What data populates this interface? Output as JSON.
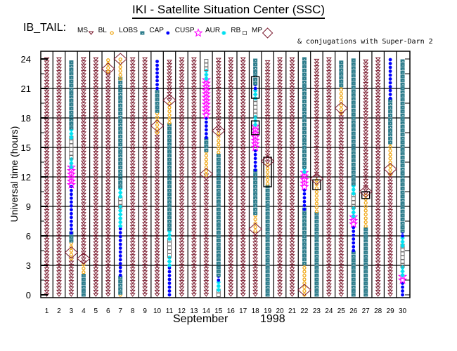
{
  "chart_data": {
    "type": "scatter",
    "title": "IKI - Satellite Situation Center (SSC)",
    "satellite_label": "IB_TAIL:",
    "note": "& conjugations with Super-Darn 2",
    "xlabel_month": "September",
    "xlabel_year": "1998",
    "ylabel": "Universal time (hours)",
    "ylim": [
      0,
      24
    ],
    "yticks": [
      0,
      3,
      6,
      9,
      12,
      15,
      18,
      21,
      24
    ],
    "xticks": [
      1,
      2,
      3,
      4,
      5,
      6,
      7,
      8,
      9,
      10,
      11,
      12,
      13,
      14,
      15,
      16,
      17,
      18,
      19,
      20,
      21,
      22,
      23,
      24,
      25,
      26,
      27,
      28,
      29,
      30
    ],
    "grid": true,
    "legend": [
      {
        "key": "MS",
        "label": "MS",
        "symbol": "triangle-down",
        "color": "#7a1a2e"
      },
      {
        "key": "BL",
        "label": "BL",
        "symbol": "sun",
        "color": "#f0a818"
      },
      {
        "key": "LOBS",
        "label": "LOBS",
        "symbol": "filled-square",
        "color": "#2e7d8c"
      },
      {
        "key": "CAP",
        "label": "CAP",
        "symbol": "filled-circle",
        "color": "#0000ff"
      },
      {
        "key": "CUSP",
        "label": "CUSP",
        "symbol": "star",
        "color": "#ff00ff"
      },
      {
        "key": "AUR",
        "label": "AUR",
        "symbol": "asterisk",
        "color": "#00e0f0"
      },
      {
        "key": "RB",
        "label": "RB",
        "symbol": "open-square",
        "color": "#707070"
      },
      {
        "key": "MP",
        "label": "MP",
        "symbol": "diamond",
        "color": "#7a1a2e"
      }
    ],
    "legend_position": "top",
    "days": [
      {
        "day": 1,
        "segments": [
          {
            "region": "MS",
            "from": 0,
            "to": 24
          }
        ]
      },
      {
        "day": 2,
        "segments": [
          {
            "region": "MS",
            "from": 0,
            "to": 24
          }
        ]
      },
      {
        "day": 3,
        "segments": [
          {
            "region": "MS",
            "from": 0,
            "to": 3.7
          },
          {
            "region": "BL",
            "from": 3.7,
            "to": 5.5
          },
          {
            "region": "LOBS",
            "from": 5.5,
            "to": 6.3
          },
          {
            "region": "CAP",
            "from": 6.3,
            "to": 11.2
          },
          {
            "region": "CUSP",
            "from": 11.2,
            "to": 13.0
          },
          {
            "region": "AUR",
            "from": 13.0,
            "to": 14.0
          },
          {
            "region": "RB",
            "from": 14.0,
            "to": 16.0
          },
          {
            "region": "AUR",
            "from": 16.0,
            "to": 17.0
          },
          {
            "region": "LOBS",
            "from": 17.0,
            "to": 24
          }
        ],
        "mp": [
          4.3
        ]
      },
      {
        "day": 4,
        "segments": [
          {
            "region": "LOBS",
            "from": 0,
            "to": 2.3
          },
          {
            "region": "BL",
            "from": 2.3,
            "to": 3.3
          },
          {
            "region": "MS",
            "from": 3.3,
            "to": 24
          }
        ],
        "mp": [
          3.7
        ]
      },
      {
        "day": 5,
        "segments": [
          {
            "region": "MS",
            "from": 0,
            "to": 24
          }
        ]
      },
      {
        "day": 6,
        "segments": [
          {
            "region": "MS",
            "from": 0,
            "to": 22.7
          },
          {
            "region": "BL",
            "from": 22.7,
            "to": 24
          }
        ],
        "mp": [
          23.0
        ]
      },
      {
        "day": 7,
        "segments": [
          {
            "region": "BL",
            "from": 0,
            "to": 0.2
          },
          {
            "region": "LOBS",
            "from": 0.2,
            "to": 2.0
          },
          {
            "region": "CAP",
            "from": 2.0,
            "to": 7.0
          },
          {
            "region": "AUR",
            "from": 7.0,
            "to": 9.0
          },
          {
            "region": "RB",
            "from": 9.0,
            "to": 10.0
          },
          {
            "region": "AUR",
            "from": 10.0,
            "to": 11.0
          },
          {
            "region": "LOBS",
            "from": 11.0,
            "to": 22.0
          },
          {
            "region": "BL",
            "from": 22.0,
            "to": 24
          }
        ],
        "mp": [
          24.0
        ]
      },
      {
        "day": 8,
        "segments": [
          {
            "region": "MS",
            "from": 0,
            "to": 24
          }
        ]
      },
      {
        "day": 9,
        "segments": [
          {
            "region": "MS",
            "from": 0,
            "to": 24
          }
        ]
      },
      {
        "day": 10,
        "segments": [
          {
            "region": "MS",
            "from": 0,
            "to": 16.5
          },
          {
            "region": "BL",
            "from": 16.5,
            "to": 18.7
          },
          {
            "region": "LOBS",
            "from": 18.7,
            "to": 21.0
          },
          {
            "region": "CAP",
            "from": 21.0,
            "to": 24
          }
        ],
        "mp": [
          17.2
        ]
      },
      {
        "day": 11,
        "segments": [
          {
            "region": "CAP",
            "from": 0,
            "to": 3.0
          },
          {
            "region": "AUR",
            "from": 3.0,
            "to": 4.0
          },
          {
            "region": "RB",
            "from": 4.0,
            "to": 5.7
          },
          {
            "region": "AUR",
            "from": 5.7,
            "to": 6.7
          },
          {
            "region": "LOBS",
            "from": 6.7,
            "to": 17.5
          },
          {
            "region": "BL",
            "from": 17.5,
            "to": 19.8
          },
          {
            "region": "MS",
            "from": 19.8,
            "to": 24
          }
        ],
        "mp": [
          19.8
        ]
      },
      {
        "day": 12,
        "segments": [
          {
            "region": "MS",
            "from": 0,
            "to": 24
          }
        ]
      },
      {
        "day": 13,
        "segments": [
          {
            "region": "MS",
            "from": 0,
            "to": 24
          }
        ]
      },
      {
        "day": 14,
        "segments": [
          {
            "region": "MS",
            "from": 0,
            "to": 12.2
          },
          {
            "region": "BL",
            "from": 12.2,
            "to": 14.7
          },
          {
            "region": "LOBS",
            "from": 14.7,
            "to": 16.0
          },
          {
            "region": "CAP",
            "from": 16.0,
            "to": 18.3
          },
          {
            "region": "CUSP",
            "from": 18.3,
            "to": 22.0
          },
          {
            "region": "AUR",
            "from": 22.0,
            "to": 23.0
          },
          {
            "region": "RB",
            "from": 23.0,
            "to": 24
          }
        ],
        "mp": [
          12.3
        ]
      },
      {
        "day": 15,
        "segments": [
          {
            "region": "RB",
            "from": 0,
            "to": 0.5
          },
          {
            "region": "AUR",
            "from": 0.5,
            "to": 1.5
          },
          {
            "region": "CAP",
            "from": 1.5,
            "to": 2.0
          },
          {
            "region": "LOBS",
            "from": 2.0,
            "to": 14.5
          },
          {
            "region": "BL",
            "from": 14.5,
            "to": 16.7
          },
          {
            "region": "MS",
            "from": 16.7,
            "to": 24
          }
        ],
        "mp": [
          16.7
        ]
      },
      {
        "day": 16,
        "segments": [
          {
            "region": "MS",
            "from": 0,
            "to": 24
          }
        ]
      },
      {
        "day": 17,
        "segments": [
          {
            "region": "MS",
            "from": 0,
            "to": 24
          }
        ]
      },
      {
        "day": 18,
        "segments": [
          {
            "region": "MS",
            "from": 0,
            "to": 6.5
          },
          {
            "region": "BL",
            "from": 6.5,
            "to": 8.3
          },
          {
            "region": "LOBS",
            "from": 8.3,
            "to": 12.7
          },
          {
            "region": "CAP",
            "from": 12.7,
            "to": 15.0
          },
          {
            "region": "CUSP",
            "from": 15.0,
            "to": 17.3
          },
          {
            "region": "AUR",
            "from": 17.3,
            "to": 18.3
          },
          {
            "region": "RB",
            "from": 18.3,
            "to": 20.0
          },
          {
            "region": "AUR",
            "from": 20.0,
            "to": 21.0
          },
          {
            "region": "CAP",
            "from": 21.0,
            "to": 21.5
          },
          {
            "region": "LOBS",
            "from": 21.5,
            "to": 24
          }
        ],
        "mp": [
          6.7
        ],
        "conj": [
          [
            16.3,
            17.7
          ],
          [
            20.0,
            22.2
          ]
        ]
      },
      {
        "day": 19,
        "segments": [
          {
            "region": "LOBS",
            "from": 0,
            "to": 11.3
          },
          {
            "region": "BL",
            "from": 11.3,
            "to": 13.5
          },
          {
            "region": "MS",
            "from": 13.5,
            "to": 24
          }
        ],
        "mp": [
          13.6
        ],
        "conj": [
          [
            11.0,
            14.0
          ]
        ]
      },
      {
        "day": 20,
        "segments": [
          {
            "region": "MS",
            "from": 0,
            "to": 24
          }
        ]
      },
      {
        "day": 21,
        "segments": [
          {
            "region": "MS",
            "from": 0,
            "to": 24
          }
        ]
      },
      {
        "day": 22,
        "segments": [
          {
            "region": "BL",
            "from": 0,
            "to": 3.2
          },
          {
            "region": "LOBS",
            "from": 3.2,
            "to": 8.7
          },
          {
            "region": "CAP",
            "from": 8.7,
            "to": 11.0
          },
          {
            "region": "CUSP",
            "from": 11.0,
            "to": 12.5
          },
          {
            "region": "AUR",
            "from": 12.5,
            "to": 13.0
          },
          {
            "region": "LOBS",
            "from": 13.0,
            "to": 24
          }
        ],
        "mp": [
          0.5
        ]
      },
      {
        "day": 23,
        "segments": [
          {
            "region": "LOBS",
            "from": 0,
            "to": 8.5
          },
          {
            "region": "BL",
            "from": 8.5,
            "to": 12.0
          },
          {
            "region": "MS",
            "from": 12.0,
            "to": 24
          }
        ],
        "mp": [
          11.8
        ],
        "conj": [
          [
            10.7,
            11.7
          ]
        ]
      },
      {
        "day": 24,
        "segments": [
          {
            "region": "MS",
            "from": 0,
            "to": 24
          }
        ]
      },
      {
        "day": 25,
        "segments": [
          {
            "region": "MS",
            "from": 0,
            "to": 18.5
          },
          {
            "region": "BL",
            "from": 18.5,
            "to": 21.3
          },
          {
            "region": "LOBS",
            "from": 21.3,
            "to": 24
          }
        ],
        "mp": [
          19.0
        ]
      },
      {
        "day": 26,
        "segments": [
          {
            "region": "LOBS",
            "from": 0,
            "to": 4.5
          },
          {
            "region": "CAP",
            "from": 4.5,
            "to": 7.2
          },
          {
            "region": "CUSP",
            "from": 7.2,
            "to": 8.0
          },
          {
            "region": "AUR",
            "from": 8.0,
            "to": 9.0
          },
          {
            "region": "RB",
            "from": 9.0,
            "to": 10.3
          },
          {
            "region": "AUR",
            "from": 10.3,
            "to": 11.3
          },
          {
            "region": "LOBS",
            "from": 11.3,
            "to": 24
          }
        ]
      },
      {
        "day": 27,
        "segments": [
          {
            "region": "LOBS",
            "from": 0,
            "to": 7.0
          },
          {
            "region": "BL",
            "from": 7.0,
            "to": 10.3
          },
          {
            "region": "MS",
            "from": 10.3,
            "to": 24
          }
        ],
        "mp": [
          10.5
        ],
        "conj": [
          [
            9.8,
            10.5
          ]
        ]
      },
      {
        "day": 28,
        "segments": [
          {
            "region": "MS",
            "from": 0,
            "to": 24
          }
        ]
      },
      {
        "day": 29,
        "segments": [
          {
            "region": "MS",
            "from": 0,
            "to": 12.3
          },
          {
            "region": "BL",
            "from": 12.3,
            "to": 15.5
          },
          {
            "region": "LOBS",
            "from": 15.5,
            "to": 20.0
          },
          {
            "region": "CAP",
            "from": 20.0,
            "to": 24
          }
        ],
        "mp": [
          12.8
        ]
      },
      {
        "day": 30,
        "segments": [
          {
            "region": "CAP",
            "from": 0,
            "to": 1.5
          },
          {
            "region": "CUSP",
            "from": 1.5,
            "to": 2.0
          },
          {
            "region": "AUR",
            "from": 2.0,
            "to": 3.0
          },
          {
            "region": "RB",
            "from": 3.0,
            "to": 5.0
          },
          {
            "region": "AUR",
            "from": 5.0,
            "to": 6.0
          },
          {
            "region": "CAP",
            "from": 6.0,
            "to": 6.5
          },
          {
            "region": "LOBS",
            "from": 6.5,
            "to": 24
          }
        ]
      }
    ]
  }
}
